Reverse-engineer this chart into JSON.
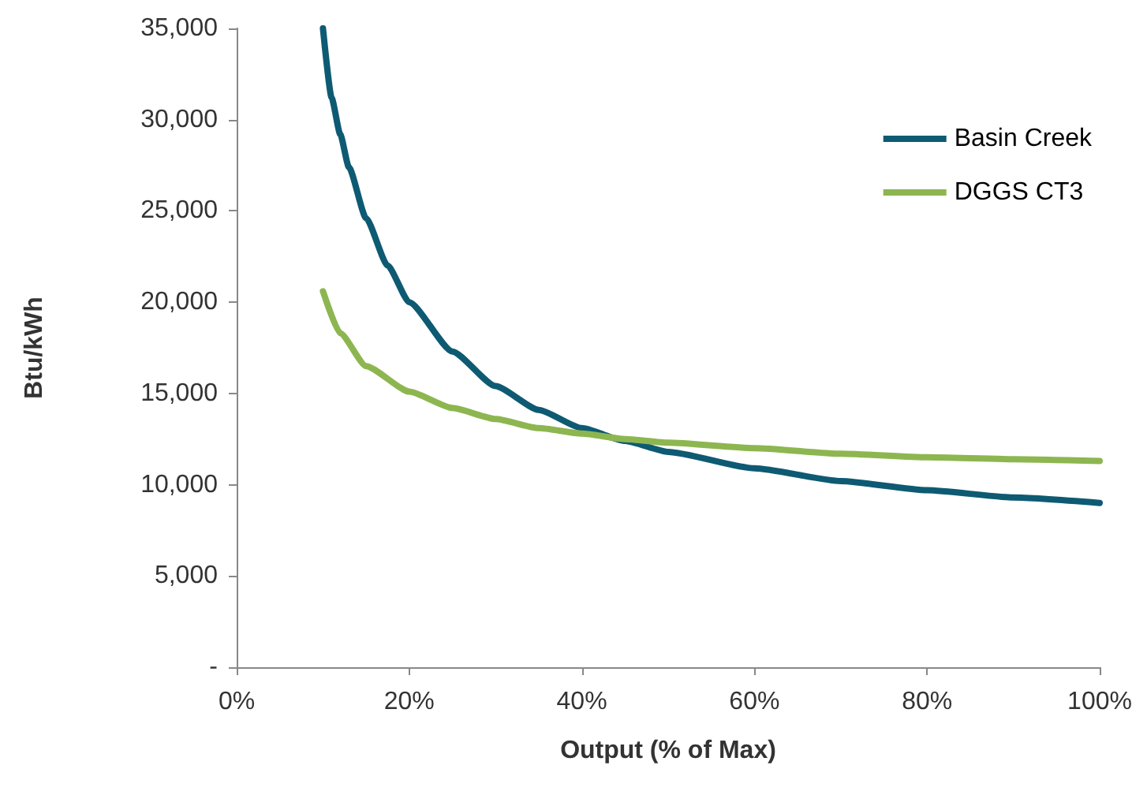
{
  "chart_data": {
    "type": "line",
    "xlabel": "Output (% of Max)",
    "ylabel": "Btu/kWh",
    "xlim": [
      0,
      100
    ],
    "xticks": [
      {
        "value": 0,
        "label": "0%"
      },
      {
        "value": 20,
        "label": "20%"
      },
      {
        "value": 40,
        "label": "40%"
      },
      {
        "value": 60,
        "label": "60%"
      },
      {
        "value": 80,
        "label": "80%"
      },
      {
        "value": 100,
        "label": "100%"
      }
    ],
    "ylim": [
      0,
      35000
    ],
    "yticks": [
      {
        "value": 0,
        "label": "-"
      },
      {
        "value": 5000,
        "label": "5,000"
      },
      {
        "value": 10000,
        "label": "10,000"
      },
      {
        "value": 15000,
        "label": "15,000"
      },
      {
        "value": 20000,
        "label": "20,000"
      },
      {
        "value": 25000,
        "label": "25,000"
      },
      {
        "value": 30000,
        "label": "30,000"
      },
      {
        "value": 35000,
        "label": "35,000"
      }
    ],
    "series": [
      {
        "name": "Basin Creek",
        "color": "#0e5a73",
        "x": [
          10,
          11,
          12,
          13,
          15,
          17.5,
          20,
          25,
          30,
          35,
          40,
          45,
          50,
          60,
          70,
          80,
          90,
          100
        ],
        "values": [
          35000,
          31200,
          29200,
          27400,
          24600,
          22000,
          20000,
          17300,
          15400,
          14100,
          13100,
          12400,
          11800,
          10900,
          10200,
          9700,
          9300,
          9000
        ]
      },
      {
        "name": "DGGS CT3",
        "color": "#8db650",
        "x": [
          10,
          12,
          15,
          20,
          25,
          30,
          35,
          40,
          45,
          50,
          60,
          70,
          80,
          90,
          100
        ],
        "values": [
          20600,
          18300,
          16500,
          15100,
          14200,
          13600,
          13100,
          12800,
          12500,
          12300,
          12000,
          11700,
          11500,
          11400,
          11300
        ]
      }
    ],
    "grid": false,
    "legend": "top right",
    "marker": "none",
    "line_style": "solid"
  }
}
